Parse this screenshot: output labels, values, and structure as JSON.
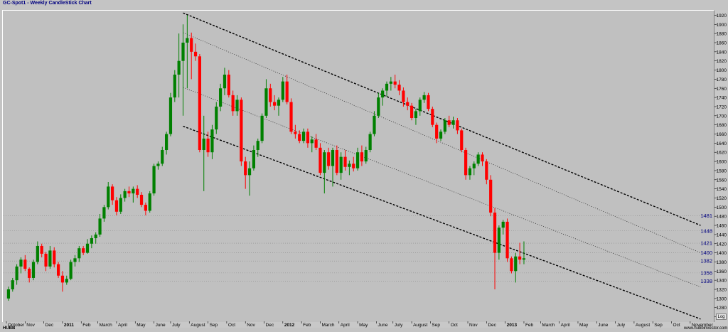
{
  "title": "GC-Spot1 - Weekly CandleStick Chart",
  "footer_left": "HUBB",
  "footer_right": "www.hubbinvestor.com",
  "log_button": "Log",
  "colors": {
    "up": "#008000",
    "down": "#ff0000",
    "trend": "#000000",
    "background": "#c0c0c0",
    "marker_text": "#000080"
  },
  "chart_data": {
    "type": "candlestick",
    "ylim": [
      1250,
      1930
    ],
    "y_ticks": [
      1260,
      1280,
      1300,
      1320,
      1340,
      1360,
      1380,
      1400,
      1420,
      1440,
      1460,
      1480,
      1500,
      1520,
      1540,
      1560,
      1580,
      1600,
      1620,
      1640,
      1660,
      1680,
      1700,
      1720,
      1740,
      1760,
      1780,
      1800,
      1820,
      1840,
      1860,
      1880,
      1900,
      1920
    ],
    "x_labels": [
      {
        "label": "October",
        "week": 0
      },
      {
        "label": "Nov",
        "week": 4.5
      },
      {
        "label": "Dec",
        "week": 9
      },
      {
        "label": "2011",
        "week": 13.5,
        "bold": true
      },
      {
        "label": "Feb",
        "week": 18
      },
      {
        "label": "March",
        "week": 22
      },
      {
        "label": "April",
        "week": 26.5
      },
      {
        "label": "May",
        "week": 31
      },
      {
        "label": "June",
        "week": 35.5
      },
      {
        "label": "July",
        "week": 39.5
      },
      {
        "label": "August",
        "week": 44
      },
      {
        "label": "Sep",
        "week": 48.5
      },
      {
        "label": "Oct",
        "week": 53
      },
      {
        "label": "Nov",
        "week": 57.5
      },
      {
        "label": "Dec",
        "week": 62
      },
      {
        "label": "2012",
        "week": 66.5,
        "bold": true
      },
      {
        "label": "Feb",
        "week": 71
      },
      {
        "label": "March",
        "week": 75.5
      },
      {
        "label": "April",
        "week": 80
      },
      {
        "label": "May",
        "week": 84.5
      },
      {
        "label": "June",
        "week": 89
      },
      {
        "label": "July",
        "week": 93
      },
      {
        "label": "August",
        "week": 97.5
      },
      {
        "label": "Sep",
        "week": 102
      },
      {
        "label": "Oct",
        "week": 106.5
      },
      {
        "label": "Nov",
        "week": 111
      },
      {
        "label": "Dec",
        "week": 115.5
      },
      {
        "label": "2013",
        "week": 120,
        "bold": true
      },
      {
        "label": "Feb",
        "week": 124.5
      },
      {
        "label": "March",
        "week": 128.5
      },
      {
        "label": "April",
        "week": 133
      },
      {
        "label": "May",
        "week": 137.5
      },
      {
        "label": "June",
        "week": 142
      },
      {
        "label": "July",
        "week": 146.5
      },
      {
        "label": "August",
        "week": 151
      },
      {
        "label": "Sep",
        "week": 155.5
      },
      {
        "label": "Oct",
        "week": 160
      },
      {
        "label": "November",
        "week": 164.5
      }
    ],
    "x_range": [
      0,
      170
    ],
    "candles": [
      [
        1300,
        1326,
        1295,
        1320
      ],
      [
        1320,
        1345,
        1315,
        1340
      ],
      [
        1340,
        1375,
        1330,
        1370
      ],
      [
        1370,
        1390,
        1355,
        1385
      ],
      [
        1385,
        1395,
        1360,
        1365
      ],
      [
        1365,
        1368,
        1335,
        1345
      ],
      [
        1345,
        1385,
        1340,
        1380
      ],
      [
        1380,
        1425,
        1375,
        1415
      ],
      [
        1415,
        1420,
        1390,
        1398
      ],
      [
        1398,
        1402,
        1360,
        1370
      ],
      [
        1370,
        1415,
        1365,
        1405
      ],
      [
        1405,
        1412,
        1368,
        1375
      ],
      [
        1375,
        1380,
        1345,
        1350
      ],
      [
        1350,
        1360,
        1315,
        1335
      ],
      [
        1335,
        1350,
        1330,
        1343
      ],
      [
        1343,
        1385,
        1340,
        1380
      ],
      [
        1380,
        1395,
        1370,
        1388
      ],
      [
        1388,
        1415,
        1380,
        1410
      ],
      [
        1410,
        1415,
        1395,
        1400
      ],
      [
        1400,
        1430,
        1398,
        1420
      ],
      [
        1420,
        1438,
        1410,
        1432
      ],
      [
        1432,
        1445,
        1420,
        1440
      ],
      [
        1440,
        1485,
        1435,
        1475
      ],
      [
        1475,
        1505,
        1468,
        1500
      ],
      [
        1500,
        1555,
        1495,
        1545
      ],
      [
        1545,
        1550,
        1505,
        1515
      ],
      [
        1515,
        1522,
        1482,
        1490
      ],
      [
        1490,
        1528,
        1485,
        1520
      ],
      [
        1520,
        1540,
        1512,
        1535
      ],
      [
        1535,
        1545,
        1522,
        1530
      ],
      [
        1530,
        1545,
        1510,
        1540
      ],
      [
        1540,
        1548,
        1520,
        1527
      ],
      [
        1527,
        1533,
        1500,
        1505
      ],
      [
        1505,
        1510,
        1482,
        1492
      ],
      [
        1492,
        1535,
        1488,
        1530
      ],
      [
        1530,
        1595,
        1525,
        1590
      ],
      [
        1590,
        1600,
        1582,
        1595
      ],
      [
        1595,
        1632,
        1590,
        1625
      ],
      [
        1625,
        1665,
        1615,
        1660
      ],
      [
        1660,
        1750,
        1655,
        1740
      ],
      [
        1740,
        1800,
        1730,
        1790
      ],
      [
        1790,
        1880,
        1740,
        1820
      ],
      [
        1820,
        1900,
        1700,
        1860
      ],
      [
        1860,
        1920,
        1760,
        1870
      ],
      [
        1870,
        1882,
        1780,
        1840
      ],
      [
        1840,
        1858,
        1820,
        1830
      ],
      [
        1830,
        1835,
        1620,
        1625
      ],
      [
        1625,
        1700,
        1535,
        1650
      ],
      [
        1650,
        1665,
        1610,
        1620
      ],
      [
        1620,
        1680,
        1605,
        1670
      ],
      [
        1670,
        1730,
        1660,
        1720
      ],
      [
        1720,
        1770,
        1710,
        1760
      ],
      [
        1760,
        1805,
        1745,
        1790
      ],
      [
        1790,
        1800,
        1740,
        1745
      ],
      [
        1745,
        1755,
        1700,
        1710
      ],
      [
        1710,
        1745,
        1700,
        1735
      ],
      [
        1735,
        1740,
        1590,
        1600
      ],
      [
        1600,
        1610,
        1540,
        1570
      ],
      [
        1570,
        1600,
        1525,
        1585
      ],
      [
        1585,
        1635,
        1580,
        1625
      ],
      [
        1625,
        1650,
        1610,
        1645
      ],
      [
        1645,
        1705,
        1640,
        1700
      ],
      [
        1700,
        1780,
        1695,
        1760
      ],
      [
        1760,
        1770,
        1720,
        1730
      ],
      [
        1730,
        1745,
        1712,
        1722
      ],
      [
        1722,
        1740,
        1700,
        1735
      ],
      [
        1735,
        1785,
        1730,
        1775
      ],
      [
        1775,
        1790,
        1725,
        1730
      ],
      [
        1730,
        1738,
        1660,
        1665
      ],
      [
        1665,
        1680,
        1650,
        1660
      ],
      [
        1660,
        1668,
        1640,
        1645
      ],
      [
        1645,
        1672,
        1640,
        1665
      ],
      [
        1665,
        1672,
        1630,
        1640
      ],
      [
        1640,
        1655,
        1620,
        1648
      ],
      [
        1648,
        1660,
        1625,
        1630
      ],
      [
        1630,
        1640,
        1570,
        1575
      ],
      [
        1575,
        1625,
        1530,
        1620
      ],
      [
        1620,
        1630,
        1582,
        1590
      ],
      [
        1590,
        1630,
        1545,
        1625
      ],
      [
        1625,
        1635,
        1570,
        1575
      ],
      [
        1575,
        1620,
        1560,
        1610
      ],
      [
        1610,
        1625,
        1580,
        1588
      ],
      [
        1588,
        1602,
        1570,
        1595
      ],
      [
        1595,
        1610,
        1578,
        1585
      ],
      [
        1585,
        1630,
        1580,
        1620
      ],
      [
        1620,
        1635,
        1590,
        1600
      ],
      [
        1600,
        1632,
        1595,
        1625
      ],
      [
        1625,
        1665,
        1620,
        1660
      ],
      [
        1660,
        1710,
        1655,
        1700
      ],
      [
        1700,
        1750,
        1695,
        1740
      ],
      [
        1740,
        1760,
        1722,
        1755
      ],
      [
        1755,
        1775,
        1742,
        1770
      ],
      [
        1770,
        1785,
        1755,
        1775
      ],
      [
        1775,
        1790,
        1760,
        1768
      ],
      [
        1768,
        1778,
        1745,
        1755
      ],
      [
        1755,
        1762,
        1720,
        1730
      ],
      [
        1730,
        1740,
        1712,
        1722
      ],
      [
        1722,
        1728,
        1690,
        1695
      ],
      [
        1695,
        1715,
        1680,
        1710
      ],
      [
        1710,
        1740,
        1700,
        1735
      ],
      [
        1735,
        1752,
        1728,
        1745
      ],
      [
        1745,
        1750,
        1710,
        1715
      ],
      [
        1715,
        1720,
        1675,
        1680
      ],
      [
        1680,
        1685,
        1640,
        1650
      ],
      [
        1650,
        1670,
        1645,
        1665
      ],
      [
        1665,
        1695,
        1660,
        1690
      ],
      [
        1690,
        1700,
        1675,
        1680
      ],
      [
        1680,
        1698,
        1672,
        1690
      ],
      [
        1690,
        1695,
        1660,
        1668
      ],
      [
        1668,
        1672,
        1620,
        1625
      ],
      [
        1625,
        1630,
        1560,
        1570
      ],
      [
        1570,
        1590,
        1560,
        1585
      ],
      [
        1585,
        1600,
        1570,
        1595
      ],
      [
        1595,
        1620,
        1590,
        1615
      ],
      [
        1615,
        1620,
        1590,
        1600
      ],
      [
        1600,
        1605,
        1550,
        1560
      ],
      [
        1560,
        1570,
        1480,
        1488
      ],
      [
        1488,
        1498,
        1320,
        1400
      ],
      [
        1400,
        1460,
        1385,
        1455
      ],
      [
        1455,
        1472,
        1440,
        1468
      ],
      [
        1468,
        1475,
        1380,
        1388
      ],
      [
        1388,
        1392,
        1355,
        1360
      ],
      [
        1360,
        1400,
        1335,
        1392
      ],
      [
        1392,
        1422,
        1375,
        1385
      ],
      [
        1385,
        1425,
        1375,
        1388
      ]
    ],
    "trendlines": [
      {
        "style": "dashed-heavy",
        "from": [
          42.5,
          1925
        ],
        "to": [
          167,
          1460
        ]
      },
      {
        "style": "dotted",
        "from": [
          42.5,
          1882
        ],
        "to": [
          167,
          1400
        ]
      },
      {
        "style": "dotted",
        "from": [
          42.5,
          1762
        ],
        "to": [
          167,
          1325
        ]
      },
      {
        "style": "dashed-heavy",
        "from": [
          42.5,
          1677
        ],
        "to": [
          167,
          1255
        ]
      }
    ],
    "level_lines": [
      {
        "value": 1481,
        "label": "1481"
      },
      {
        "value": 1448,
        "label": "1448"
      },
      {
        "value": 1421,
        "label": "1421"
      },
      {
        "value": 1400,
        "label": "1400"
      },
      {
        "value": 1382,
        "label": "1382"
      },
      {
        "value": 1356,
        "label": "1356"
      },
      {
        "value": 1338,
        "label": "1338"
      }
    ]
  }
}
